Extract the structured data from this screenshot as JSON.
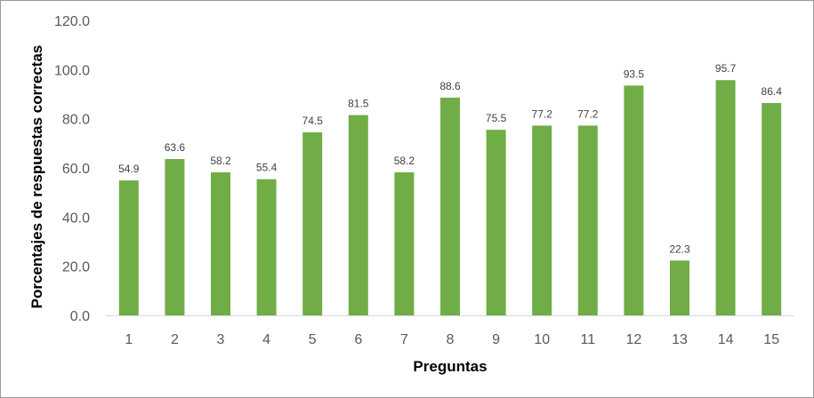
{
  "chart_data": {
    "type": "bar",
    "title": "",
    "xlabel": "Preguntas",
    "ylabel": "Porcentajes de respuestas correctas",
    "categories": [
      "1",
      "2",
      "3",
      "4",
      "5",
      "6",
      "7",
      "8",
      "9",
      "10",
      "11",
      "12",
      "13",
      "14",
      "15"
    ],
    "values": [
      54.9,
      63.6,
      58.2,
      55.4,
      74.5,
      81.5,
      58.2,
      88.6,
      75.5,
      77.2,
      77.2,
      93.5,
      22.3,
      95.7,
      86.4
    ],
    "value_labels": [
      "54.9",
      "63.6",
      "58.2",
      "55.4",
      "74.5",
      "81.5",
      "58.2",
      "88.6",
      "75.5",
      "77.2",
      "77.2",
      "93.5",
      "22.3",
      "95.7",
      "86.4"
    ],
    "ylim": [
      0,
      120
    ],
    "yticks": [
      "0.0",
      "20.0",
      "40.0",
      "60.0",
      "80.0",
      "100.0",
      "120.0"
    ],
    "grid": false,
    "legend": "none",
    "bar_color": "#70ad47",
    "axis_color": "#d9d9d9"
  }
}
